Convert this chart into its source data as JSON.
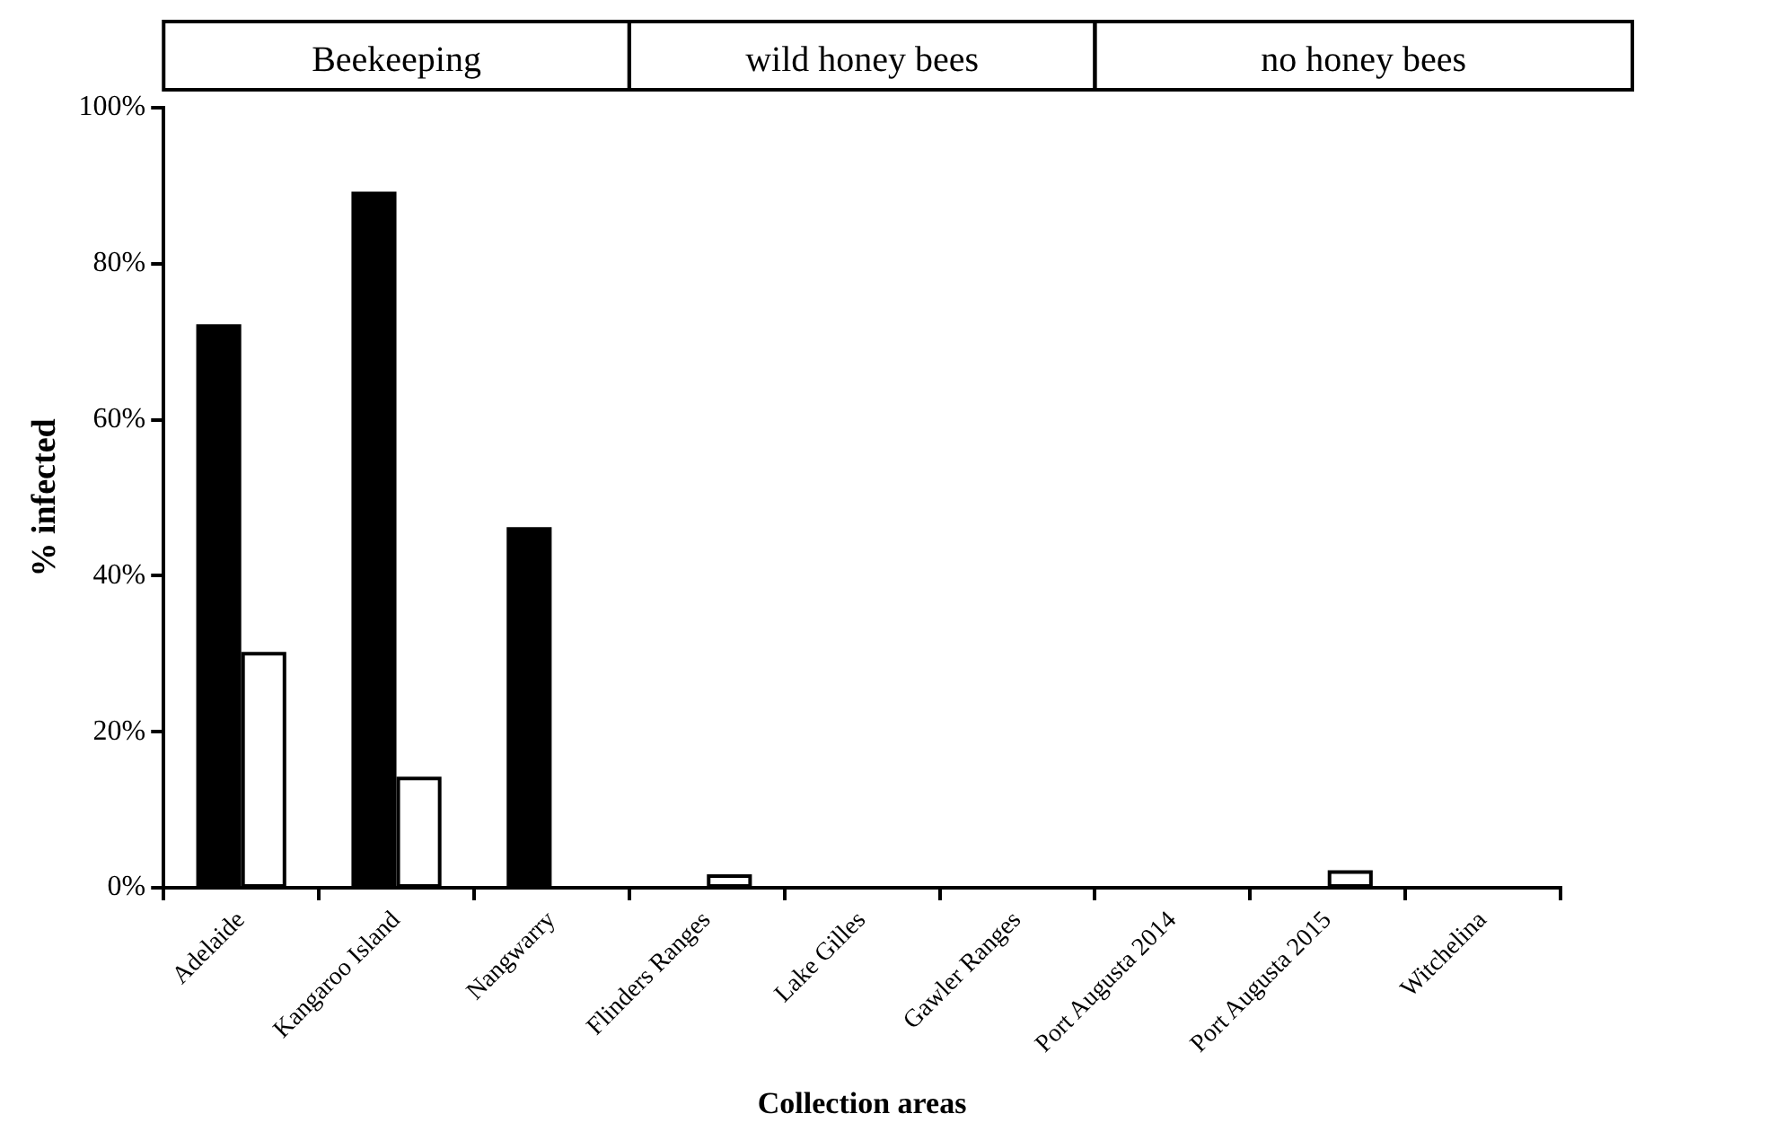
{
  "chart_data": {
    "type": "bar",
    "xlabel": "Collection areas",
    "ylabel": "% infected",
    "categories": [
      "Adelaide",
      "Kangaroo Island",
      "Nangwarry",
      "Flinders Ranges",
      "Lake Gilles",
      "Gawler Ranges",
      "Port Augusta 2014",
      "Port Augusta 2015",
      "Witchelina"
    ],
    "series": [
      {
        "color": "#000000",
        "values": [
          72,
          89,
          46,
          0,
          0,
          0,
          0,
          0,
          0
        ]
      },
      {
        "color": "#ffffff",
        "values": [
          30,
          14,
          0,
          1.5,
          0,
          0,
          0,
          2,
          0
        ]
      }
    ],
    "ylim": [
      0,
      100
    ],
    "yticks": [
      {
        "value": 0,
        "label": "0%"
      },
      {
        "value": 20,
        "label": "20%"
      },
      {
        "value": 40,
        "label": "40%"
      },
      {
        "value": 60,
        "label": "60%"
      },
      {
        "value": 80,
        "label": "80%"
      },
      {
        "value": 100,
        "label": "100%"
      }
    ],
    "grid": false,
    "legend": false,
    "annotations": [
      "Beekeeping",
      "wild honey bees",
      "no honey bees"
    ]
  }
}
